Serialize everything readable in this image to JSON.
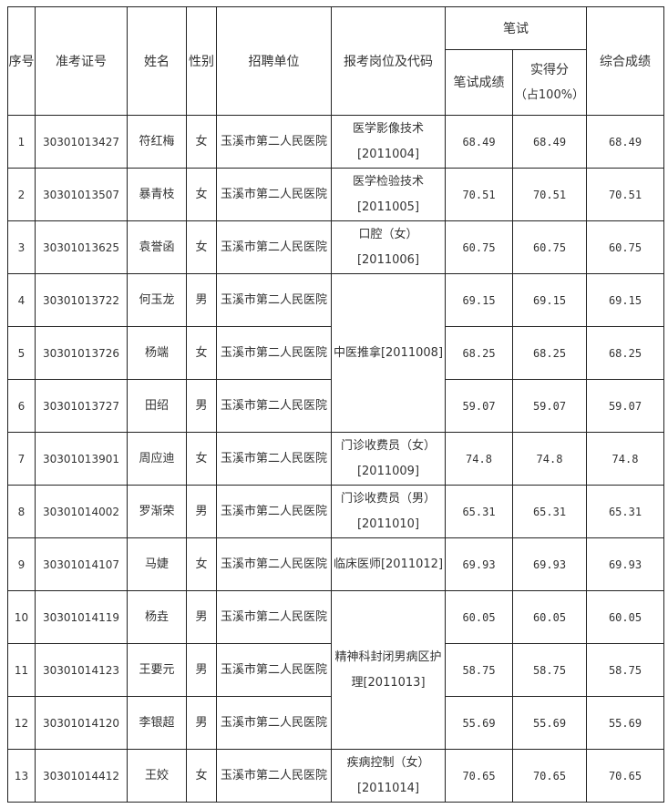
{
  "headers": {
    "seq": "序号",
    "exam_id": "准考证号",
    "name": "姓名",
    "gender": "性别",
    "unit": "招聘单位",
    "position": "报考岗位及代码",
    "written_group": "笔试",
    "written_score": "笔试成绩",
    "actual_line1": "实得分",
    "actual_line2": "（占100%）",
    "total": "综合成绩"
  },
  "rows": [
    {
      "seq": "1",
      "exam_id": "30301013427",
      "name": "符红梅",
      "gender": "女",
      "unit": "玉溪市第二人民医院",
      "position": "医学影像技术[2011004]",
      "written": "68.49",
      "actual": "68.49",
      "total": "68.49"
    },
    {
      "seq": "2",
      "exam_id": "30301013507",
      "name": "暴青枝",
      "gender": "女",
      "unit": "玉溪市第二人民医院",
      "position": "医学检验技术[2011005]",
      "written": "70.51",
      "actual": "70.51",
      "total": "70.51"
    },
    {
      "seq": "3",
      "exam_id": "30301013625",
      "name": "袁誉函",
      "gender": "女",
      "unit": "玉溪市第二人民医院",
      "position": "口腔（女）[2011006]",
      "written": "60.75",
      "actual": "60.75",
      "total": "60.75"
    },
    {
      "seq": "4",
      "exam_id": "30301013722",
      "name": "何玉龙",
      "gender": "男",
      "unit": "玉溪市第二人民医院",
      "position": "中医推拿[2011008]",
      "written": "69.15",
      "actual": "69.15",
      "total": "69.15"
    },
    {
      "seq": "5",
      "exam_id": "30301013726",
      "name": "杨端",
      "gender": "女",
      "unit": "玉溪市第二人民医院",
      "position": null,
      "written": "68.25",
      "actual": "68.25",
      "total": "68.25"
    },
    {
      "seq": "6",
      "exam_id": "30301013727",
      "name": "田绍",
      "gender": "男",
      "unit": "玉溪市第二人民医院",
      "position": null,
      "written": "59.07",
      "actual": "59.07",
      "total": "59.07"
    },
    {
      "seq": "7",
      "exam_id": "30301013901",
      "name": "周应迪",
      "gender": "女",
      "unit": "玉溪市第二人民医院",
      "position": "门诊收费员（女）[2011009]",
      "written": "74.8",
      "actual": "74.8",
      "total": "74.8"
    },
    {
      "seq": "8",
      "exam_id": "30301014002",
      "name": "罗渐荣",
      "gender": "男",
      "unit": "玉溪市第二人民医院",
      "position": "门诊收费员（男）[2011010]",
      "written": "65.31",
      "actual": "65.31",
      "total": "65.31"
    },
    {
      "seq": "9",
      "exam_id": "30301014107",
      "name": "马婕",
      "gender": "女",
      "unit": "玉溪市第二人民医院",
      "position": "临床医师[2011012]",
      "written": "69.93",
      "actual": "69.93",
      "total": "69.93"
    },
    {
      "seq": "10",
      "exam_id": "30301014119",
      "name": "杨垚",
      "gender": "男",
      "unit": "玉溪市第二人民医院",
      "position": "精神科封闭男病区护理[2011013]",
      "written": "60.05",
      "actual": "60.05",
      "total": "60.05"
    },
    {
      "seq": "11",
      "exam_id": "30301014123",
      "name": "王要元",
      "gender": "男",
      "unit": "玉溪市第二人民医院",
      "position": null,
      "written": "58.75",
      "actual": "58.75",
      "total": "58.75"
    },
    {
      "seq": "12",
      "exam_id": "30301014120",
      "name": "李银超",
      "gender": "男",
      "unit": "玉溪市第二人民医院",
      "position": null,
      "written": "55.69",
      "actual": "55.69",
      "total": "55.69"
    },
    {
      "seq": "13",
      "exam_id": "30301014412",
      "name": "王姣",
      "gender": "女",
      "unit": "玉溪市第二人民医院",
      "position": "疾病控制（女）[2011014]",
      "written": "70.65",
      "actual": "70.65",
      "total": "70.65"
    }
  ]
}
